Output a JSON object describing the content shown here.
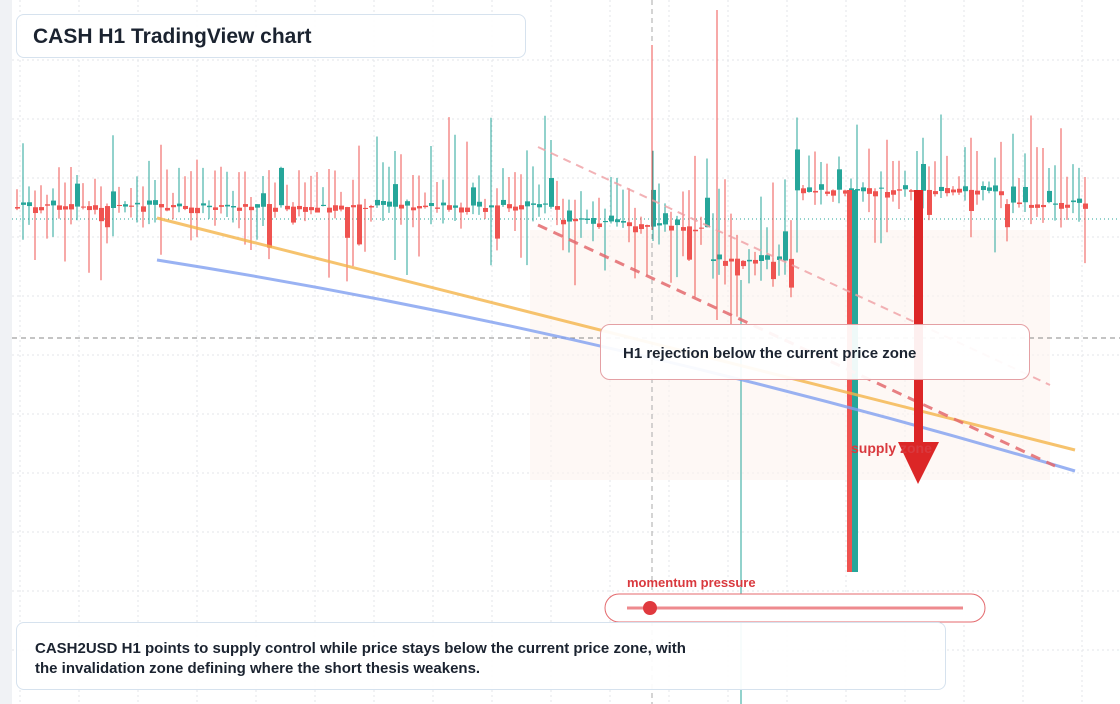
{
  "header": {
    "title": "CASH H1 TradingView chart"
  },
  "annotations": {
    "rejection": "H1 rejection below the current price zone",
    "zone": "supply zone",
    "momentum": "momentum pressure"
  },
  "caption": "CASH2USD H1 points to supply control while price stays below the current price zone, with the invalidation zone defining where the short thesis weakens."
}
